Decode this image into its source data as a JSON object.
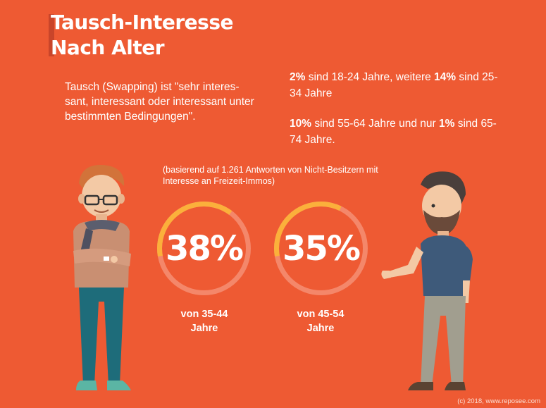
{
  "title": {
    "line1": "Tausch-Interesse",
    "line2": "Nach Alter"
  },
  "intro": "Tausch (Swapping) ist \"sehr interes-sant, interessant oder interessant unter bestimmten Bedingungen\".",
  "stats": [
    {
      "p1": "2%",
      "t1": " sind 18-24 Jahre, weitere ",
      "p2": "14%",
      "t2": " sind 25-34 Jahre"
    },
    {
      "p1": "10%",
      "t1": " sind 55-64 Jahre und nur ",
      "p2": "1%",
      "t2": " sind 65-74 Jahre."
    }
  ],
  "note": "(basierend auf 1.261 Antworten von Nicht-Besitzern mit Interesse an Freizeit-Immos)",
  "rings": [
    {
      "value": "38%",
      "label_line1": "von 35-44",
      "label_line2": "Jahre",
      "fraction": 0.38
    },
    {
      "value": "35%",
      "label_line1": "von 45-54",
      "label_line2": "Jahre",
      "fraction": 0.35
    }
  ],
  "credit": "(c) 2018, www.reposee.com",
  "colors": {
    "background": "#EE5A33",
    "ring_track": "#F4876A",
    "ring_progress": "#FBB03B",
    "text": "#FFFFFF"
  }
}
